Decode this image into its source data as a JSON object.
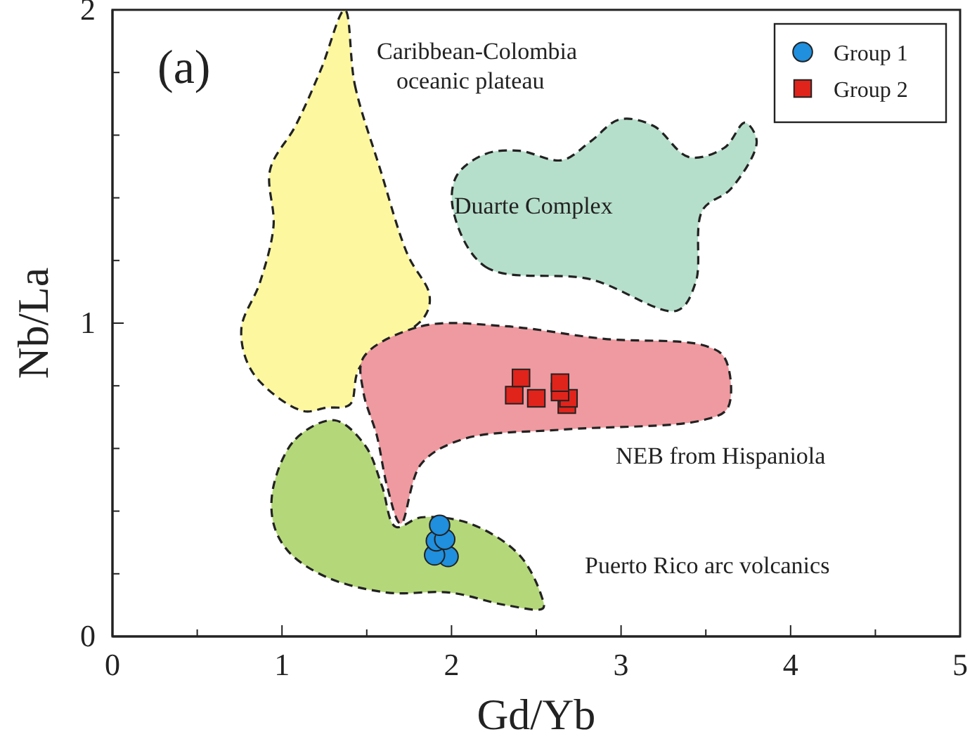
{
  "chart_data": {
    "type": "scatter",
    "xlabel": "Gd/Yb",
    "ylabel": "Nb/La",
    "xlim": [
      0,
      5
    ],
    "ylim": [
      0,
      2
    ],
    "xticks": [
      0,
      {
        "value": 0.5,
        "label": null
      },
      1,
      {
        "value": 1.5,
        "label": null
      },
      2,
      {
        "value": 2.5,
        "label": null
      },
      3,
      {
        "value": 3.5,
        "label": null
      },
      4,
      {
        "value": 4.5,
        "label": null
      },
      5
    ],
    "yticks": [
      0,
      {
        "value": 0.2,
        "label": null
      },
      {
        "value": 0.4,
        "label": null
      },
      {
        "value": 0.6,
        "label": null
      },
      {
        "value": 0.8,
        "label": null
      },
      1,
      {
        "value": 1.2,
        "label": null
      },
      {
        "value": 1.4,
        "label": null
      },
      {
        "value": 1.6,
        "label": null
      },
      {
        "value": 1.8,
        "label": null
      },
      2
    ],
    "grid": false,
    "legend": "top right",
    "annotations": [
      "(a)",
      "Caribbean-Colombia\noceanic plateau",
      "Duarte  Complex",
      "NEB from Hispaniola",
      "Puerto Rico arc volcanics"
    ],
    "series": [
      {
        "type": "area",
        "color": "#fdf8a0",
        "line_style": "dashed",
        "x": [
          1.37,
          1.43,
          1.58,
          1.74,
          1.87,
          1.84,
          1.46,
          1.4,
          1.26,
          1.12,
          0.83,
          0.76,
          0.87,
          0.95,
          0.93,
          1.08,
          1.23
        ],
        "values": [
          2.0,
          1.76,
          1.49,
          1.22,
          1.09,
          1.02,
          0.86,
          0.74,
          0.73,
          0.72,
          0.84,
          0.98,
          1.13,
          1.31,
          1.49,
          1.63,
          1.81
        ]
      },
      {
        "type": "area",
        "color": "#b6dfcb",
        "line_style": "dashed",
        "x": [
          2.01,
          2.2,
          2.82,
          3.33,
          3.44,
          3.48,
          3.65,
          3.8,
          3.73,
          3.61,
          3.4,
          3.19,
          2.99,
          2.82,
          2.65,
          2.4,
          2.2,
          2.03
        ],
        "values": [
          1.36,
          1.18,
          1.14,
          1.04,
          1.13,
          1.36,
          1.43,
          1.58,
          1.64,
          1.56,
          1.53,
          1.63,
          1.65,
          1.58,
          1.52,
          1.55,
          1.54,
          1.47
        ]
      },
      {
        "type": "area",
        "color": "#ef9aa0",
        "line_style": "dashed",
        "x": [
          1.48,
          1.82,
          2.32,
          2.9,
          3.48,
          3.61,
          3.63,
          3.48,
          2.65,
          2.07,
          1.82,
          1.7,
          1.62,
          1.56,
          1.48
        ],
        "values": [
          0.89,
          0.99,
          0.99,
          0.95,
          0.93,
          0.89,
          0.73,
          0.69,
          0.66,
          0.63,
          0.55,
          0.36,
          0.48,
          0.64,
          0.78
        ]
      },
      {
        "type": "area",
        "color": "#b4d879",
        "line_style": "dashed",
        "x": [
          0.95,
          1.08,
          1.31,
          1.49,
          1.59,
          1.67,
          1.82,
          2.11,
          2.4,
          2.53,
          2.54,
          2.32,
          1.99,
          1.62,
          1.26,
          1.04,
          0.95
        ],
        "values": [
          0.48,
          0.63,
          0.69,
          0.61,
          0.48,
          0.35,
          0.38,
          0.36,
          0.26,
          0.13,
          0.09,
          0.1,
          0.14,
          0.14,
          0.19,
          0.27,
          0.36
        ]
      },
      {
        "name": "Group 1",
        "color": "#1f8fde",
        "marker": "circle",
        "x": [
          1.93,
          1.96,
          1.91,
          1.9,
          1.98
        ],
        "values": [
          0.355,
          0.31,
          0.305,
          0.26,
          0.255
        ]
      },
      {
        "name": "Group 2",
        "color": "#e0241c",
        "marker": "square",
        "x": [
          2.41,
          2.37,
          2.5,
          2.64,
          2.64,
          2.69,
          2.68
        ],
        "values": [
          0.825,
          0.77,
          0.76,
          0.81,
          0.78,
          0.76,
          0.74
        ]
      }
    ]
  }
}
